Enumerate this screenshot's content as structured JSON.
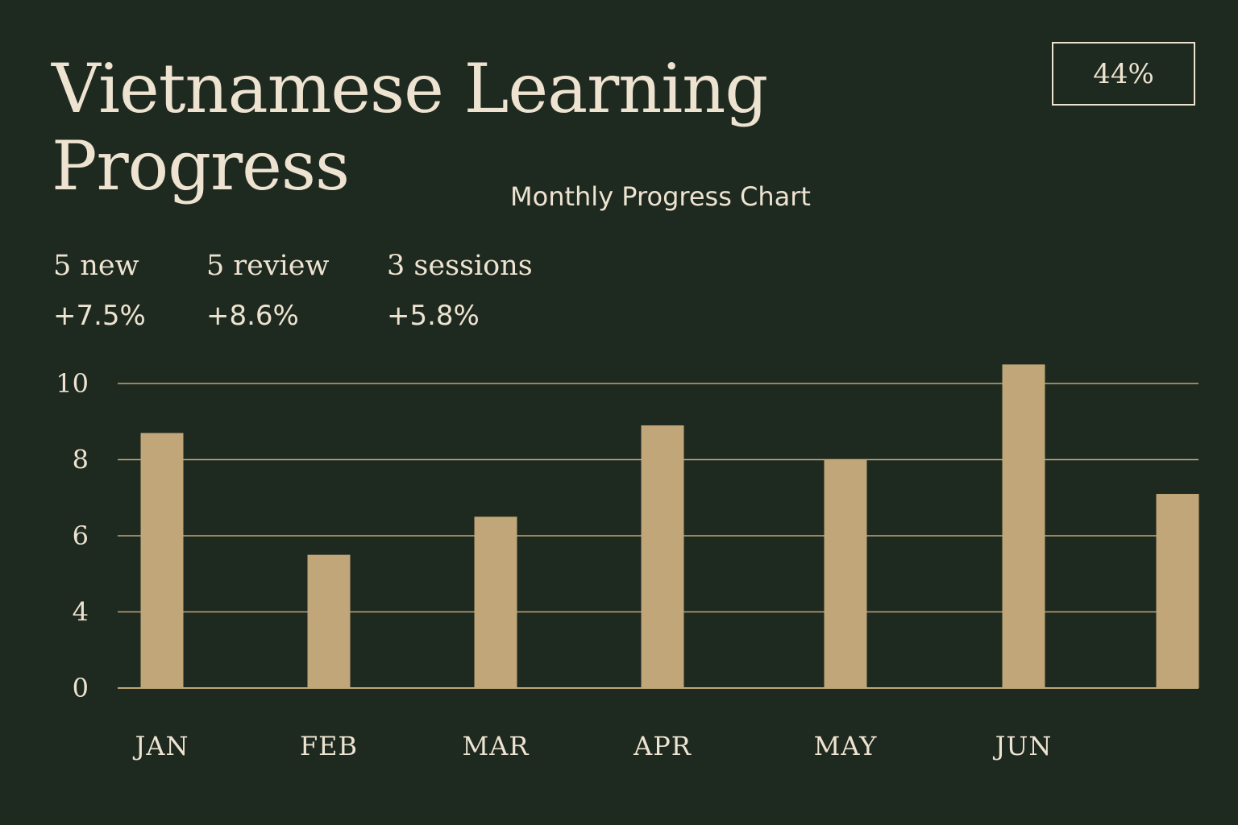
{
  "header": {
    "title": "Vietnamese Learning Progress",
    "subtitle": "Monthly Progress Chart",
    "badge": "44%"
  },
  "stats": [
    {
      "label": "5 new",
      "change": "+7.5%"
    },
    {
      "label": "5 review",
      "change": "+8.6%"
    },
    {
      "label": "3 sessions",
      "change": "+5.8%"
    }
  ],
  "colors": {
    "background": "#1e2920",
    "text": "#ede3d0",
    "bar": "#c0a678",
    "gridline": "#c0a678"
  },
  "chart_data": {
    "type": "bar",
    "title": "Monthly Progress Chart",
    "categories": [
      "JAN",
      "FEB",
      "MAR",
      "APR",
      "MAY",
      "JUN",
      ""
    ],
    "values": [
      8.7,
      5.5,
      6.5,
      8.9,
      8.0,
      10.5,
      7.1
    ],
    "yticks": [
      0,
      4,
      6,
      8,
      10
    ],
    "ylim": [
      0,
      10.8
    ],
    "grid": true,
    "xlabel": "",
    "ylabel": ""
  }
}
